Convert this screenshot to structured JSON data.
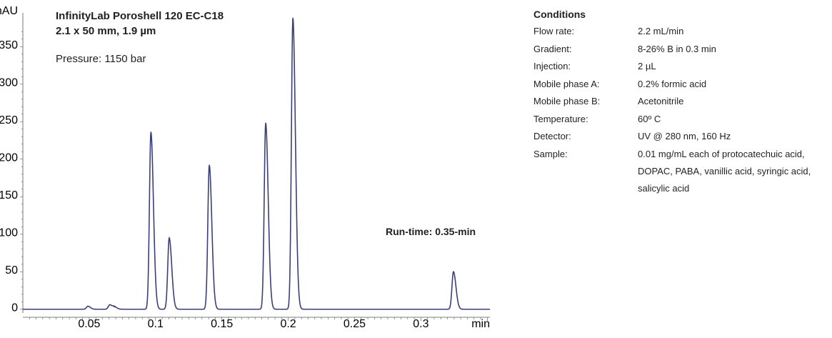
{
  "chart_data": {
    "type": "line",
    "title_line1": "InfinityLab Poroshell 120 EC-C18",
    "title_line2": "2.1 x 50 mm, 1.9 µm",
    "pressure_label": "Pressure:",
    "pressure_value": " 1150 bar",
    "runtime_label": "Run-time: 0.35-min",
    "ylabel": "mAU",
    "xlabel": "min",
    "xlim": [
      0.0,
      0.352
    ],
    "ylim": [
      -5,
      395
    ],
    "yticks": [
      0,
      50,
      100,
      150,
      200,
      250,
      300,
      350
    ],
    "xticks": [
      0.05,
      0.1,
      0.15,
      0.2,
      0.25,
      0.3
    ],
    "xtick_labels": [
      "0.05",
      "0.1",
      "0.15",
      "0.2",
      "0.25",
      "0.3"
    ],
    "baseline": 0,
    "peaks": [
      {
        "x": 0.049,
        "height": 4
      },
      {
        "x": 0.0655,
        "height": 6
      },
      {
        "x": 0.069,
        "height": 3
      },
      {
        "x": 0.0965,
        "height": 236
      },
      {
        "x": 0.1103,
        "height": 95
      },
      {
        "x": 0.1405,
        "height": 192
      },
      {
        "x": 0.183,
        "height": 248
      },
      {
        "x": 0.2035,
        "height": 388
      },
      {
        "x": 0.3245,
        "height": 50
      }
    ],
    "line_color": "#3a3f7a"
  },
  "conditions": {
    "heading": "Conditions",
    "rows": [
      {
        "label": "Flow rate:",
        "value": "2.2 mL/min"
      },
      {
        "label": "Gradient:",
        "value": "8-26% B in 0.3 min"
      },
      {
        "label": "Injection:",
        "value": "2 µL"
      },
      {
        "label": "Mobile phase A:",
        "value": "0.2% formic acid"
      },
      {
        "label": "Mobile phase B:",
        "value": "Acetonitrile"
      },
      {
        "label": "Temperature:",
        "value": "60º C"
      },
      {
        "label": "Detector:",
        "value": "UV @ 280 nm, 160 Hz"
      },
      {
        "label": "Sample:",
        "value": "0.01 mg/mL each of protocatechuic acid, DOPAC, PABA, vanillic acid, syringic acid, salicylic acid"
      }
    ]
  }
}
